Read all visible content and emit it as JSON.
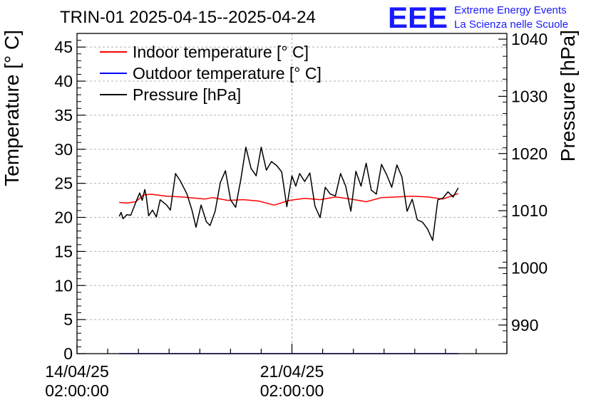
{
  "chart_data": {
    "type": "line",
    "title": "TRIN-01 2025-04-15--2025-04-24",
    "ylabel": "Temperature [° C]",
    "y2label": "Pressure [hPa]",
    "xlabel": "",
    "x_axis": "time",
    "xlim": [
      "2025-04-14T02:00:00",
      "2025-04-28T02:00:00"
    ],
    "ylim": [
      0,
      47
    ],
    "y2lim": [
      985,
      1041
    ],
    "grid": true,
    "legend_position": "top-left",
    "x_tick_labels": [
      {
        "date": "14/04/25",
        "time": "02:00:00"
      },
      {
        "date": "21/04/25",
        "time": "02:00:00"
      }
    ],
    "y_ticks": [
      0,
      5,
      10,
      15,
      20,
      25,
      30,
      35,
      40,
      45
    ],
    "y2_ticks": [
      990,
      1000,
      1010,
      1020,
      1030,
      1040
    ],
    "series": [
      {
        "name": "Indoor temperature [° C]",
        "axis": "left",
        "color": "#ff0000",
        "x": [
          "2025-04-15T11:00",
          "2025-04-15T17:00",
          "2025-04-16T00:00",
          "2025-04-16T06:00",
          "2025-04-16T12:00",
          "2025-04-17T00:00",
          "2025-04-17T12:00",
          "2025-04-18T00:00",
          "2025-04-18T06:00",
          "2025-04-18T12:00",
          "2025-04-19T00:00",
          "2025-04-19T12:00",
          "2025-04-20T00:00",
          "2025-04-20T12:00",
          "2025-04-21T00:00",
          "2025-04-21T12:00",
          "2025-04-22T00:00",
          "2025-04-22T12:00",
          "2025-04-23T00:00",
          "2025-04-23T12:00",
          "2025-04-24T00:00",
          "2025-04-24T12:00",
          "2025-04-25T00:00",
          "2025-04-25T12:00",
          "2025-04-26T00:00",
          "2025-04-26T12:00"
        ],
        "values": [
          22.2,
          22.1,
          22.3,
          23.3,
          23.4,
          23.1,
          23.0,
          22.8,
          22.7,
          22.9,
          22.5,
          22.6,
          22.4,
          21.8,
          22.5,
          22.8,
          22.6,
          23.0,
          22.7,
          22.3,
          22.9,
          23.0,
          23.1,
          23.0,
          22.7,
          23.5
        ]
      },
      {
        "name": "Outdoor temperature [° C]",
        "axis": "left",
        "color": "#0000ff",
        "x": [
          "2025-04-15T11:00",
          "2025-04-26T12:00"
        ],
        "values": [
          0,
          0
        ]
      },
      {
        "name": "Pressure [hPa]",
        "axis": "right",
        "color": "#000000",
        "x": [
          "2025-04-15T11:00",
          "2025-04-15T12:30",
          "2025-04-15T14:00",
          "2025-04-15T17:00",
          "2025-04-15T20:00",
          "2025-04-16T00:00",
          "2025-04-16T03:00",
          "2025-04-16T05:00",
          "2025-04-16T07:00",
          "2025-04-16T08:00",
          "2025-04-16T10:00",
          "2025-04-16T13:00",
          "2025-04-16T16:00",
          "2025-04-16T19:00",
          "2025-04-17T00:00",
          "2025-04-17T03:00",
          "2025-04-17T07:00",
          "2025-04-17T11:00",
          "2025-04-17T16:00",
          "2025-04-17T20:00",
          "2025-04-17T23:00",
          "2025-04-18T03:00",
          "2025-04-18T07:00",
          "2025-04-18T10:00",
          "2025-04-18T14:00",
          "2025-04-18T18:00",
          "2025-04-18T22:00",
          "2025-04-19T02:00",
          "2025-04-19T06:00",
          "2025-04-19T10:00",
          "2025-04-19T14:00",
          "2025-04-19T18:00",
          "2025-04-19T22:00",
          "2025-04-20T02:00",
          "2025-04-20T06:00",
          "2025-04-20T10:00",
          "2025-04-20T14:00",
          "2025-04-20T18:00",
          "2025-04-20T22:00",
          "2025-04-21T02:00",
          "2025-04-21T05:00",
          "2025-04-21T08:00",
          "2025-04-21T12:00",
          "2025-04-21T16:00",
          "2025-04-21T20:00",
          "2025-04-22T00:00",
          "2025-04-22T04:00",
          "2025-04-22T08:00",
          "2025-04-22T12:00",
          "2025-04-22T16:00",
          "2025-04-22T20:00",
          "2025-04-23T00:00",
          "2025-04-23T04:00",
          "2025-04-23T08:00",
          "2025-04-23T12:00",
          "2025-04-23T16:00",
          "2025-04-23T20:00",
          "2025-04-24T00:00",
          "2025-04-24T04:00",
          "2025-04-24T08:00",
          "2025-04-24T12:00",
          "2025-04-24T16:00",
          "2025-04-24T20:00",
          "2025-04-25T00:00",
          "2025-04-25T04:00",
          "2025-04-25T08:00",
          "2025-04-25T12:00",
          "2025-04-25T16:00",
          "2025-04-25T20:00",
          "2025-04-26T00:00",
          "2025-04-26T04:00",
          "2025-04-26T08:00",
          "2025-04-26T12:00"
        ],
        "values": [
          1009.0,
          1009.7,
          1008.6,
          1009.3,
          1009.2,
          1011.5,
          1013.1,
          1011.8,
          1013.7,
          1012.7,
          1009.1,
          1010.1,
          1008.9,
          1011.9,
          1011.0,
          1010.1,
          1016.5,
          1015.1,
          1012.9,
          1010.0,
          1007.1,
          1011.0,
          1008.1,
          1007.4,
          1009.9,
          1014.9,
          1017.0,
          1011.9,
          1010.6,
          1015.4,
          1021.1,
          1017.4,
          1016.1,
          1021.1,
          1017.1,
          1018.6,
          1017.9,
          1016.8,
          1010.7,
          1016.1,
          1014.3,
          1016.5,
          1015.1,
          1016.6,
          1010.8,
          1008.8,
          1014.1,
          1012.9,
          1012.6,
          1016.5,
          1014.3,
          1009.9,
          1016.9,
          1014.3,
          1018.3,
          1013.6,
          1012.9,
          1018.1,
          1016.3,
          1014.1,
          1018.0,
          1015.9,
          1009.9,
          1012.0,
          1008.4,
          1008.0,
          1006.8,
          1004.8,
          1011.9,
          1012.2,
          1013.3,
          1012.4,
          1014.0
        ]
      }
    ]
  },
  "logo": {
    "text": "EEE",
    "line1": "Extreme Energy Events",
    "line2": "La Scienza nelle Scuole",
    "color": "#1a1aff"
  }
}
